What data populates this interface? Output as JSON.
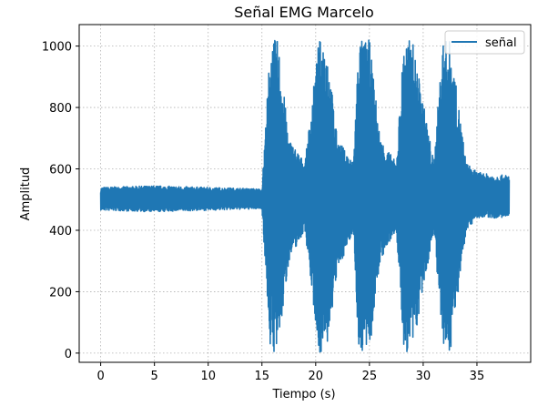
{
  "chart_data": {
    "type": "line",
    "title": "Señal EMG Marcelo",
    "xlabel": "Tiempo (s)",
    "ylabel": "Amplitud",
    "xlim": [
      -2,
      40
    ],
    "ylim": [
      -30,
      1070
    ],
    "xticks": [
      0,
      5,
      10,
      15,
      20,
      25,
      30,
      35
    ],
    "xtick_labels": [
      "0",
      "5",
      "10",
      "15",
      "20",
      "25",
      "30",
      "35"
    ],
    "yticks": [
      0,
      200,
      400,
      600,
      800,
      1000
    ],
    "ytick_labels": [
      "0",
      "200",
      "400",
      "600",
      "800",
      "1000"
    ],
    "grid": true,
    "legend_position": "top-right",
    "color": "#1f77b4",
    "series": [
      {
        "name": "señal",
        "description_points": {
          "x": [
            0,
            5,
            10,
            15,
            15.8,
            16.5,
            17.5,
            19,
            20.3,
            21,
            22,
            23.5,
            24,
            25,
            26,
            27.5,
            28.2,
            29,
            31,
            31.8,
            32.5,
            34,
            35,
            36.5,
            38
          ],
          "y_min": [
            465,
            460,
            465,
            470,
            0,
            0,
            300,
            400,
            0,
            0,
            260,
            400,
            0,
            0,
            300,
            400,
            0,
            0,
            400,
            0,
            0,
            400,
            440,
            440,
            440
          ],
          "y_max": [
            540,
            545,
            540,
            535,
            1020,
            1020,
            700,
            620,
            1020,
            1020,
            700,
            620,
            1020,
            1020,
            700,
            620,
            1020,
            1020,
            620,
            1020,
            1020,
            620,
            590,
            580,
            580
          ]
        }
      }
    ]
  }
}
